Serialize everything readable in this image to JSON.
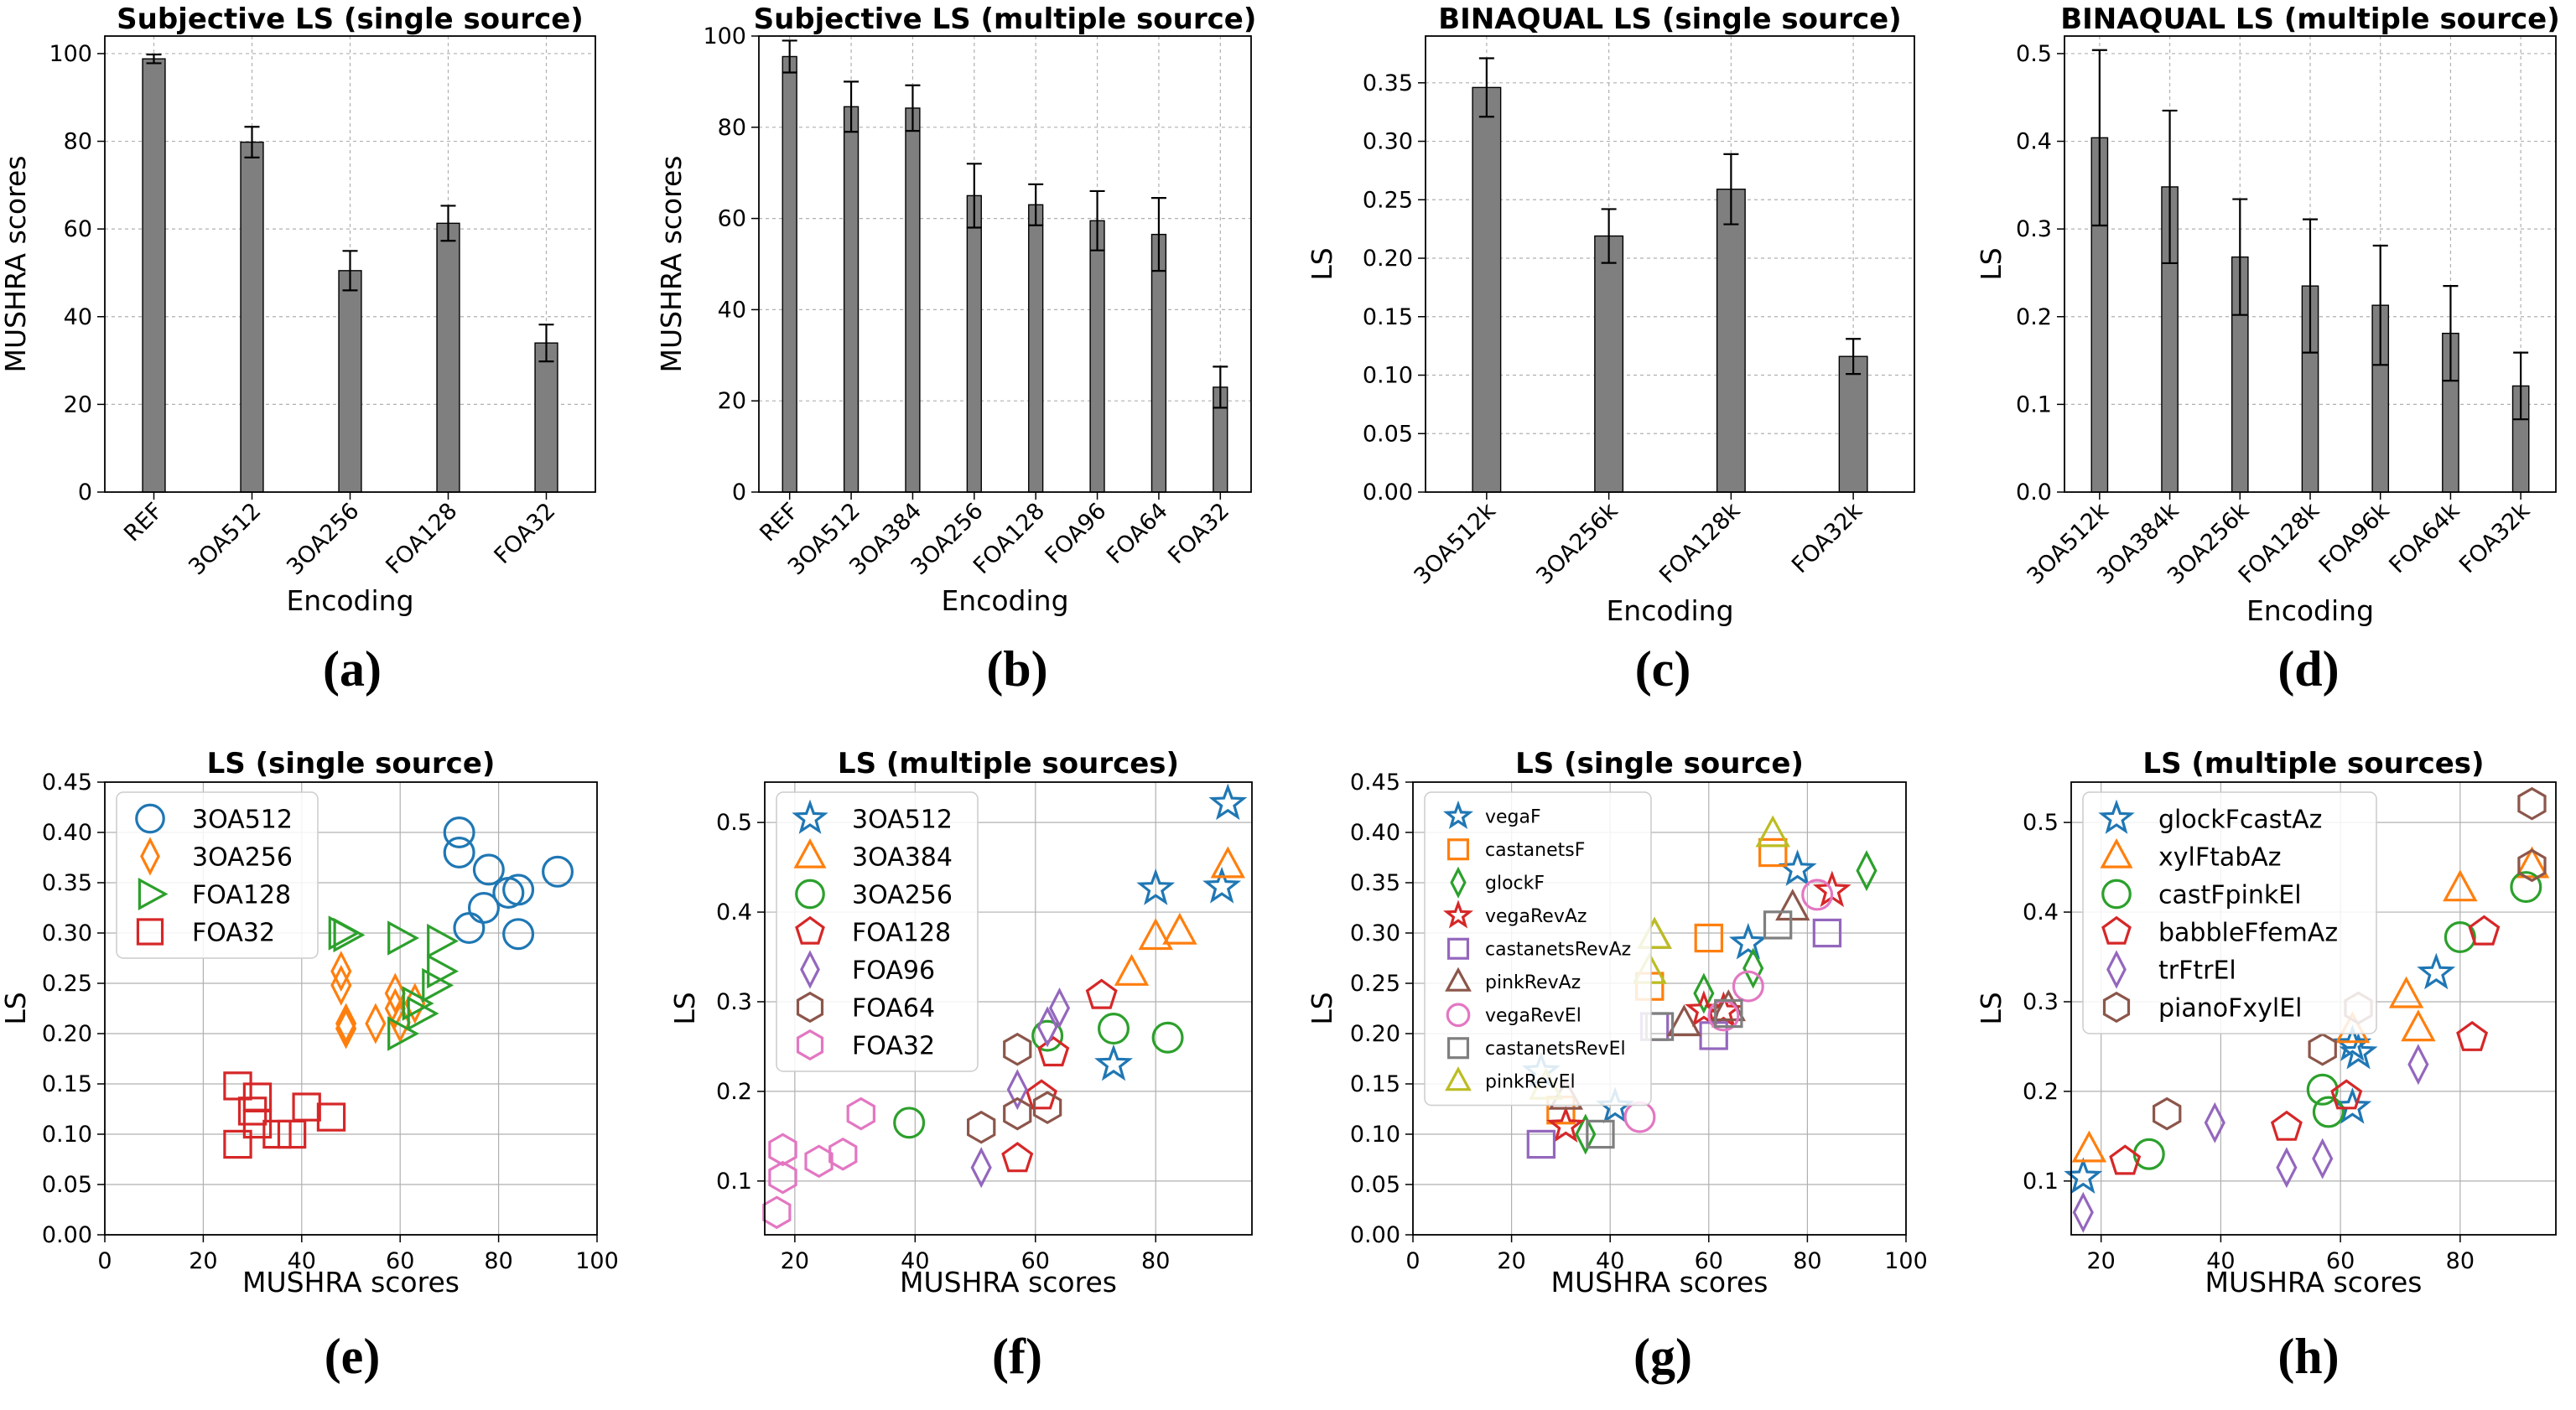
{
  "figure": {
    "captions": [
      "(a)",
      "(b)",
      "(c)",
      "(d)",
      "(e)",
      "(f)",
      "(g)",
      "(h)"
    ]
  },
  "chart_data": [
    {
      "type": "bar",
      "title": "Subjective LS (single source)",
      "xlabel": "Encoding",
      "ylabel": "MUSHRA scores",
      "categories": [
        "REF",
        "3OA512",
        "3OA256",
        "FOA128",
        "FOA32"
      ],
      "values": [
        98.8,
        79.8,
        50.5,
        61.3,
        34.0
      ],
      "errors": [
        1.0,
        3.5,
        4.5,
        4.0,
        4.2
      ],
      "ylim": [
        0,
        104
      ],
      "yticks": [
        0,
        20,
        40,
        60,
        80,
        100
      ],
      "ytick_labels": [
        "0",
        "20",
        "40",
        "60",
        "80",
        "100"
      ],
      "grid": true
    },
    {
      "type": "bar",
      "title": "Subjective LS (multiple source)",
      "xlabel": "Encoding",
      "ylabel": "MUSHRA scores",
      "categories": [
        "REF",
        "3OA512",
        "3OA384",
        "3OA256",
        "FOA128",
        "FOA96",
        "FOA64",
        "FOA32"
      ],
      "values": [
        95.5,
        84.5,
        84.2,
        65.0,
        63.0,
        59.5,
        56.5,
        23.0
      ],
      "errors": [
        3.5,
        5.5,
        5.0,
        7.0,
        4.5,
        6.5,
        8.0,
        4.5
      ],
      "ylim": [
        0,
        100
      ],
      "yticks": [
        0,
        20,
        40,
        60,
        80,
        100
      ],
      "ytick_labels": [
        "0",
        "20",
        "40",
        "60",
        "80",
        "100"
      ],
      "grid": true
    },
    {
      "type": "bar",
      "title": "BINAQUAL LS (single source)",
      "xlabel": "Encoding",
      "ylabel": "LS",
      "categories": [
        "3OA512k",
        "3OA256k",
        "FOA128k",
        "FOA32k"
      ],
      "values": [
        0.346,
        0.219,
        0.259,
        0.116
      ],
      "errors": [
        0.025,
        0.023,
        0.03,
        0.015
      ],
      "ylim": [
        0,
        0.39
      ],
      "yticks": [
        0,
        0.05,
        0.1,
        0.15,
        0.2,
        0.25,
        0.3,
        0.35
      ],
      "ytick_labels": [
        "0.00",
        "0.05",
        "0.10",
        "0.15",
        "0.20",
        "0.25",
        "0.30",
        "0.35"
      ],
      "grid": true
    },
    {
      "type": "bar",
      "title": "BINAQUAL LS (multiple source)",
      "xlabel": "Encoding",
      "ylabel": "LS",
      "categories": [
        "3OA512k",
        "3OA384k",
        "3OA256k",
        "FOA128k",
        "FOA96k",
        "FOA64k",
        "FOA32k"
      ],
      "values": [
        0.404,
        0.348,
        0.268,
        0.235,
        0.213,
        0.181,
        0.121
      ],
      "errors": [
        0.1,
        0.087,
        0.066,
        0.076,
        0.068,
        0.054,
        0.038
      ],
      "ylim": [
        0,
        0.52
      ],
      "yticks": [
        0,
        0.1,
        0.2,
        0.3,
        0.4,
        0.5
      ],
      "ytick_labels": [
        "0.0",
        "0.1",
        "0.2",
        "0.3",
        "0.4",
        "0.5"
      ],
      "grid": true
    },
    {
      "type": "scatter",
      "title": "LS (single source)",
      "xlabel": "MUSHRA scores",
      "ylabel": "LS",
      "xlim": [
        0,
        100
      ],
      "ylim": [
        0,
        0.45
      ],
      "xticks": [
        0,
        20,
        40,
        60,
        80,
        100
      ],
      "xtick_labels": [
        "0",
        "20",
        "40",
        "60",
        "80",
        "100"
      ],
      "yticks": [
        0,
        0.05,
        0.1,
        0.15,
        0.2,
        0.25,
        0.3,
        0.35,
        0.4,
        0.45
      ],
      "ytick_labels": [
        "0.00",
        "0.05",
        "0.10",
        "0.15",
        "0.20",
        "0.25",
        "0.30",
        "0.35",
        "0.40",
        "0.45"
      ],
      "legend_position": "top-left",
      "grid": true,
      "series": [
        {
          "name": "3OA512",
          "color": "#1f77b4",
          "marker": "circle",
          "points": [
            [
              72,
              0.4
            ],
            [
              72,
              0.38
            ],
            [
              74,
              0.305
            ],
            [
              77,
              0.325
            ],
            [
              78,
              0.363
            ],
            [
              82,
              0.34
            ],
            [
              84,
              0.343
            ],
            [
              84,
              0.299
            ],
            [
              92,
              0.361
            ]
          ]
        },
        {
          "name": "3OA256",
          "color": "#ff7f0e",
          "marker": "thin_diamond",
          "points": [
            [
              48,
              0.262
            ],
            [
              48,
              0.248
            ],
            [
              49,
              0.21
            ],
            [
              49,
              0.205
            ],
            [
              55,
              0.21
            ],
            [
              59,
              0.24
            ],
            [
              59,
              0.225
            ],
            [
              60,
              0.211
            ],
            [
              63,
              0.23
            ]
          ]
        },
        {
          "name": "FOA128",
          "color": "#2ca02c",
          "marker": "triangle_right",
          "points": [
            [
              48,
              0.3
            ],
            [
              49,
              0.298
            ],
            [
              60,
              0.295
            ],
            [
              60,
              0.2
            ],
            [
              63,
              0.23
            ],
            [
              64,
              0.22
            ],
            [
              68,
              0.292
            ],
            [
              68,
              0.262
            ],
            [
              67,
              0.248
            ]
          ]
        },
        {
          "name": "FOA32",
          "color": "#d62728",
          "marker": "square",
          "points": [
            [
              27,
              0.148
            ],
            [
              27,
              0.09
            ],
            [
              30,
              0.123
            ],
            [
              31,
              0.137
            ],
            [
              31,
              0.11
            ],
            [
              35,
              0.1
            ],
            [
              38,
              0.1
            ],
            [
              41,
              0.127
            ],
            [
              46,
              0.117
            ]
          ]
        }
      ]
    },
    {
      "type": "scatter",
      "title": "LS (multiple sources)",
      "xlabel": "MUSHRA scores",
      "ylabel": "LS",
      "xlim": [
        15,
        96
      ],
      "ylim": [
        0.04,
        0.545
      ],
      "xticks": [
        20,
        40,
        60,
        80
      ],
      "xtick_labels": [
        "20",
        "40",
        "60",
        "80"
      ],
      "yticks": [
        0.1,
        0.2,
        0.3,
        0.4,
        0.5
      ],
      "ytick_labels": [
        "0.1",
        "0.2",
        "0.3",
        "0.4",
        "0.5"
      ],
      "legend_position": "top-left",
      "grid": true,
      "series": [
        {
          "name": "3OA512",
          "color": "#1f77b4",
          "marker": "star",
          "points": [
            [
              92,
              0.521
            ],
            [
              91,
              0.428
            ],
            [
              80,
              0.426
            ],
            [
              73,
              0.23
            ]
          ]
        },
        {
          "name": "3OA384",
          "color": "#ff7f0e",
          "marker": "triangle_up",
          "points": [
            [
              92,
              0.452
            ],
            [
              84,
              0.378
            ],
            [
              80,
              0.372
            ],
            [
              76,
              0.332
            ]
          ]
        },
        {
          "name": "3OA256",
          "color": "#2ca02c",
          "marker": "circle",
          "points": [
            [
              39,
              0.165
            ],
            [
              62,
              0.262
            ],
            [
              73,
              0.27
            ],
            [
              82,
              0.26
            ]
          ]
        },
        {
          "name": "FOA128",
          "color": "#d62728",
          "marker": "pentagon",
          "points": [
            [
              57,
              0.125
            ],
            [
              61,
              0.195
            ],
            [
              63,
              0.243
            ],
            [
              71,
              0.307
            ]
          ]
        },
        {
          "name": "FOA96",
          "color": "#9467bd",
          "marker": "thin_diamond",
          "points": [
            [
              51,
              0.115
            ],
            [
              57,
              0.202
            ],
            [
              62,
              0.272
            ],
            [
              64,
              0.293
            ]
          ]
        },
        {
          "name": "FOA64",
          "color": "#8c564b",
          "marker": "hexagon",
          "points": [
            [
              51,
              0.16
            ],
            [
              57,
              0.175
            ],
            [
              57,
              0.247
            ],
            [
              62,
              0.182
            ]
          ]
        },
        {
          "name": "FOA32",
          "color": "#e377c2",
          "marker": "hexagon",
          "points": [
            [
              17,
              0.065
            ],
            [
              18,
              0.104
            ],
            [
              18,
              0.135
            ],
            [
              24,
              0.122
            ],
            [
              28,
              0.13
            ],
            [
              31,
              0.175
            ]
          ]
        }
      ]
    },
    {
      "type": "scatter",
      "title": "LS (single source)",
      "xlabel": "MUSHRA scores",
      "ylabel": "LS",
      "xlim": [
        0,
        100
      ],
      "ylim": [
        0,
        0.45
      ],
      "xticks": [
        0,
        20,
        40,
        60,
        80,
        100
      ],
      "xtick_labels": [
        "0",
        "20",
        "40",
        "60",
        "80",
        "100"
      ],
      "yticks": [
        0,
        0.05,
        0.1,
        0.15,
        0.2,
        0.25,
        0.3,
        0.35,
        0.4,
        0.45
      ],
      "ytick_labels": [
        "0.00",
        "0.05",
        "0.10",
        "0.15",
        "0.20",
        "0.25",
        "0.30",
        "0.35",
        "0.40",
        "0.45"
      ],
      "legend_position": "top-left",
      "grid": true,
      "series": [
        {
          "name": "vegaF",
          "color": "#1f77b4",
          "marker": "star",
          "points": [
            [
              26,
              0.162
            ],
            [
              41,
              0.127
            ],
            [
              68,
              0.29
            ],
            [
              78,
              0.363
            ]
          ]
        },
        {
          "name": "castanetsF",
          "color": "#ff7f0e",
          "marker": "square",
          "points": [
            [
              30,
              0.124
            ],
            [
              48,
              0.247
            ],
            [
              60,
              0.295
            ],
            [
              73,
              0.38
            ]
          ]
        },
        {
          "name": "glockF",
          "color": "#2ca02c",
          "marker": "thin_diamond",
          "points": [
            [
              35,
              0.1
            ],
            [
              59,
              0.24
            ],
            [
              69,
              0.265
            ],
            [
              92,
              0.362
            ]
          ]
        },
        {
          "name": "vegaRevAz",
          "color": "#d62728",
          "marker": "star",
          "points": [
            [
              31,
              0.108
            ],
            [
              59,
              0.223
            ],
            [
              63,
              0.222
            ],
            [
              85,
              0.342
            ]
          ]
        },
        {
          "name": "castanetsRevAz",
          "color": "#9467bd",
          "marker": "square",
          "points": [
            [
              26,
              0.09
            ],
            [
              49,
              0.207
            ],
            [
              61,
              0.198
            ],
            [
              84,
              0.3
            ]
          ]
        },
        {
          "name": "pinkRevAz",
          "color": "#8c564b",
          "marker": "triangle_up",
          "points": [
            [
              31,
              0.137
            ],
            [
              49,
              0.297
            ],
            [
              55,
              0.21
            ],
            [
              64,
              0.225
            ],
            [
              77,
              0.325
            ]
          ]
        },
        {
          "name": "vegaRevEl",
          "color": "#e377c2",
          "marker": "circle",
          "points": [
            [
              46,
              0.117
            ],
            [
              63,
              0.218
            ],
            [
              68,
              0.247
            ],
            [
              82,
              0.338
            ]
          ]
        },
        {
          "name": "castanetsRevEl",
          "color": "#7f7f7f",
          "marker": "square",
          "points": [
            [
              38,
              0.1
            ],
            [
              50,
              0.207
            ],
            [
              64,
              0.22
            ],
            [
              74,
              0.308
            ]
          ]
        },
        {
          "name": "pinkRevEl",
          "color": "#bcbd22",
          "marker": "triangle_up",
          "points": [
            [
              27,
              0.147
            ],
            [
              48,
              0.262
            ],
            [
              49,
              0.297
            ],
            [
              73,
              0.398
            ]
          ]
        }
      ]
    },
    {
      "type": "scatter",
      "title": "LS (multiple sources)",
      "xlabel": "MUSHRA scores",
      "ylabel": "LS",
      "xlim": [
        15,
        96
      ],
      "ylim": [
        0.04,
        0.545
      ],
      "xticks": [
        20,
        40,
        60,
        80
      ],
      "xtick_labels": [
        "20",
        "40",
        "60",
        "80"
      ],
      "yticks": [
        0.1,
        0.2,
        0.3,
        0.4,
        0.5
      ],
      "ytick_labels": [
        "0.1",
        "0.2",
        "0.3",
        "0.4",
        "0.5"
      ],
      "legend_position": "top-left",
      "grid": true,
      "series": [
        {
          "name": "glockFcastAz",
          "color": "#1f77b4",
          "marker": "star",
          "points": [
            [
              17,
              0.104
            ],
            [
              62,
              0.182
            ],
            [
              62,
              0.252
            ],
            [
              63,
              0.243
            ],
            [
              76,
              0.332
            ]
          ]
        },
        {
          "name": "xylFtabAz",
          "color": "#ff7f0e",
          "marker": "triangle_up",
          "points": [
            [
              18,
              0.135
            ],
            [
              62,
              0.268
            ],
            [
              71,
              0.307
            ],
            [
              73,
              0.27
            ],
            [
              80,
              0.426
            ],
            [
              92,
              0.452
            ]
          ]
        },
        {
          "name": "castFpinkEl",
          "color": "#2ca02c",
          "marker": "circle",
          "points": [
            [
              28,
              0.13
            ],
            [
              57,
              0.202
            ],
            [
              58,
              0.177
            ],
            [
              80,
              0.372
            ],
            [
              91,
              0.428
            ]
          ]
        },
        {
          "name": "babbleFfemAz",
          "color": "#d62728",
          "marker": "pentagon",
          "points": [
            [
              24,
              0.122
            ],
            [
              51,
              0.16
            ],
            [
              61,
              0.195
            ],
            [
              82,
              0.26
            ],
            [
              84,
              0.378
            ]
          ]
        },
        {
          "name": "trFtrEl",
          "color": "#9467bd",
          "marker": "thin_diamond",
          "points": [
            [
              17,
              0.065
            ],
            [
              39,
              0.165
            ],
            [
              51,
              0.115
            ],
            [
              57,
              0.125
            ],
            [
              73,
              0.23
            ]
          ]
        },
        {
          "name": "pianoFxylEl",
          "color": "#8c564b",
          "marker": "hexagon",
          "points": [
            [
              31,
              0.175
            ],
            [
              57,
              0.247
            ],
            [
              63,
              0.293
            ],
            [
              92,
              0.521
            ],
            [
              92,
              0.452
            ]
          ]
        }
      ]
    }
  ]
}
